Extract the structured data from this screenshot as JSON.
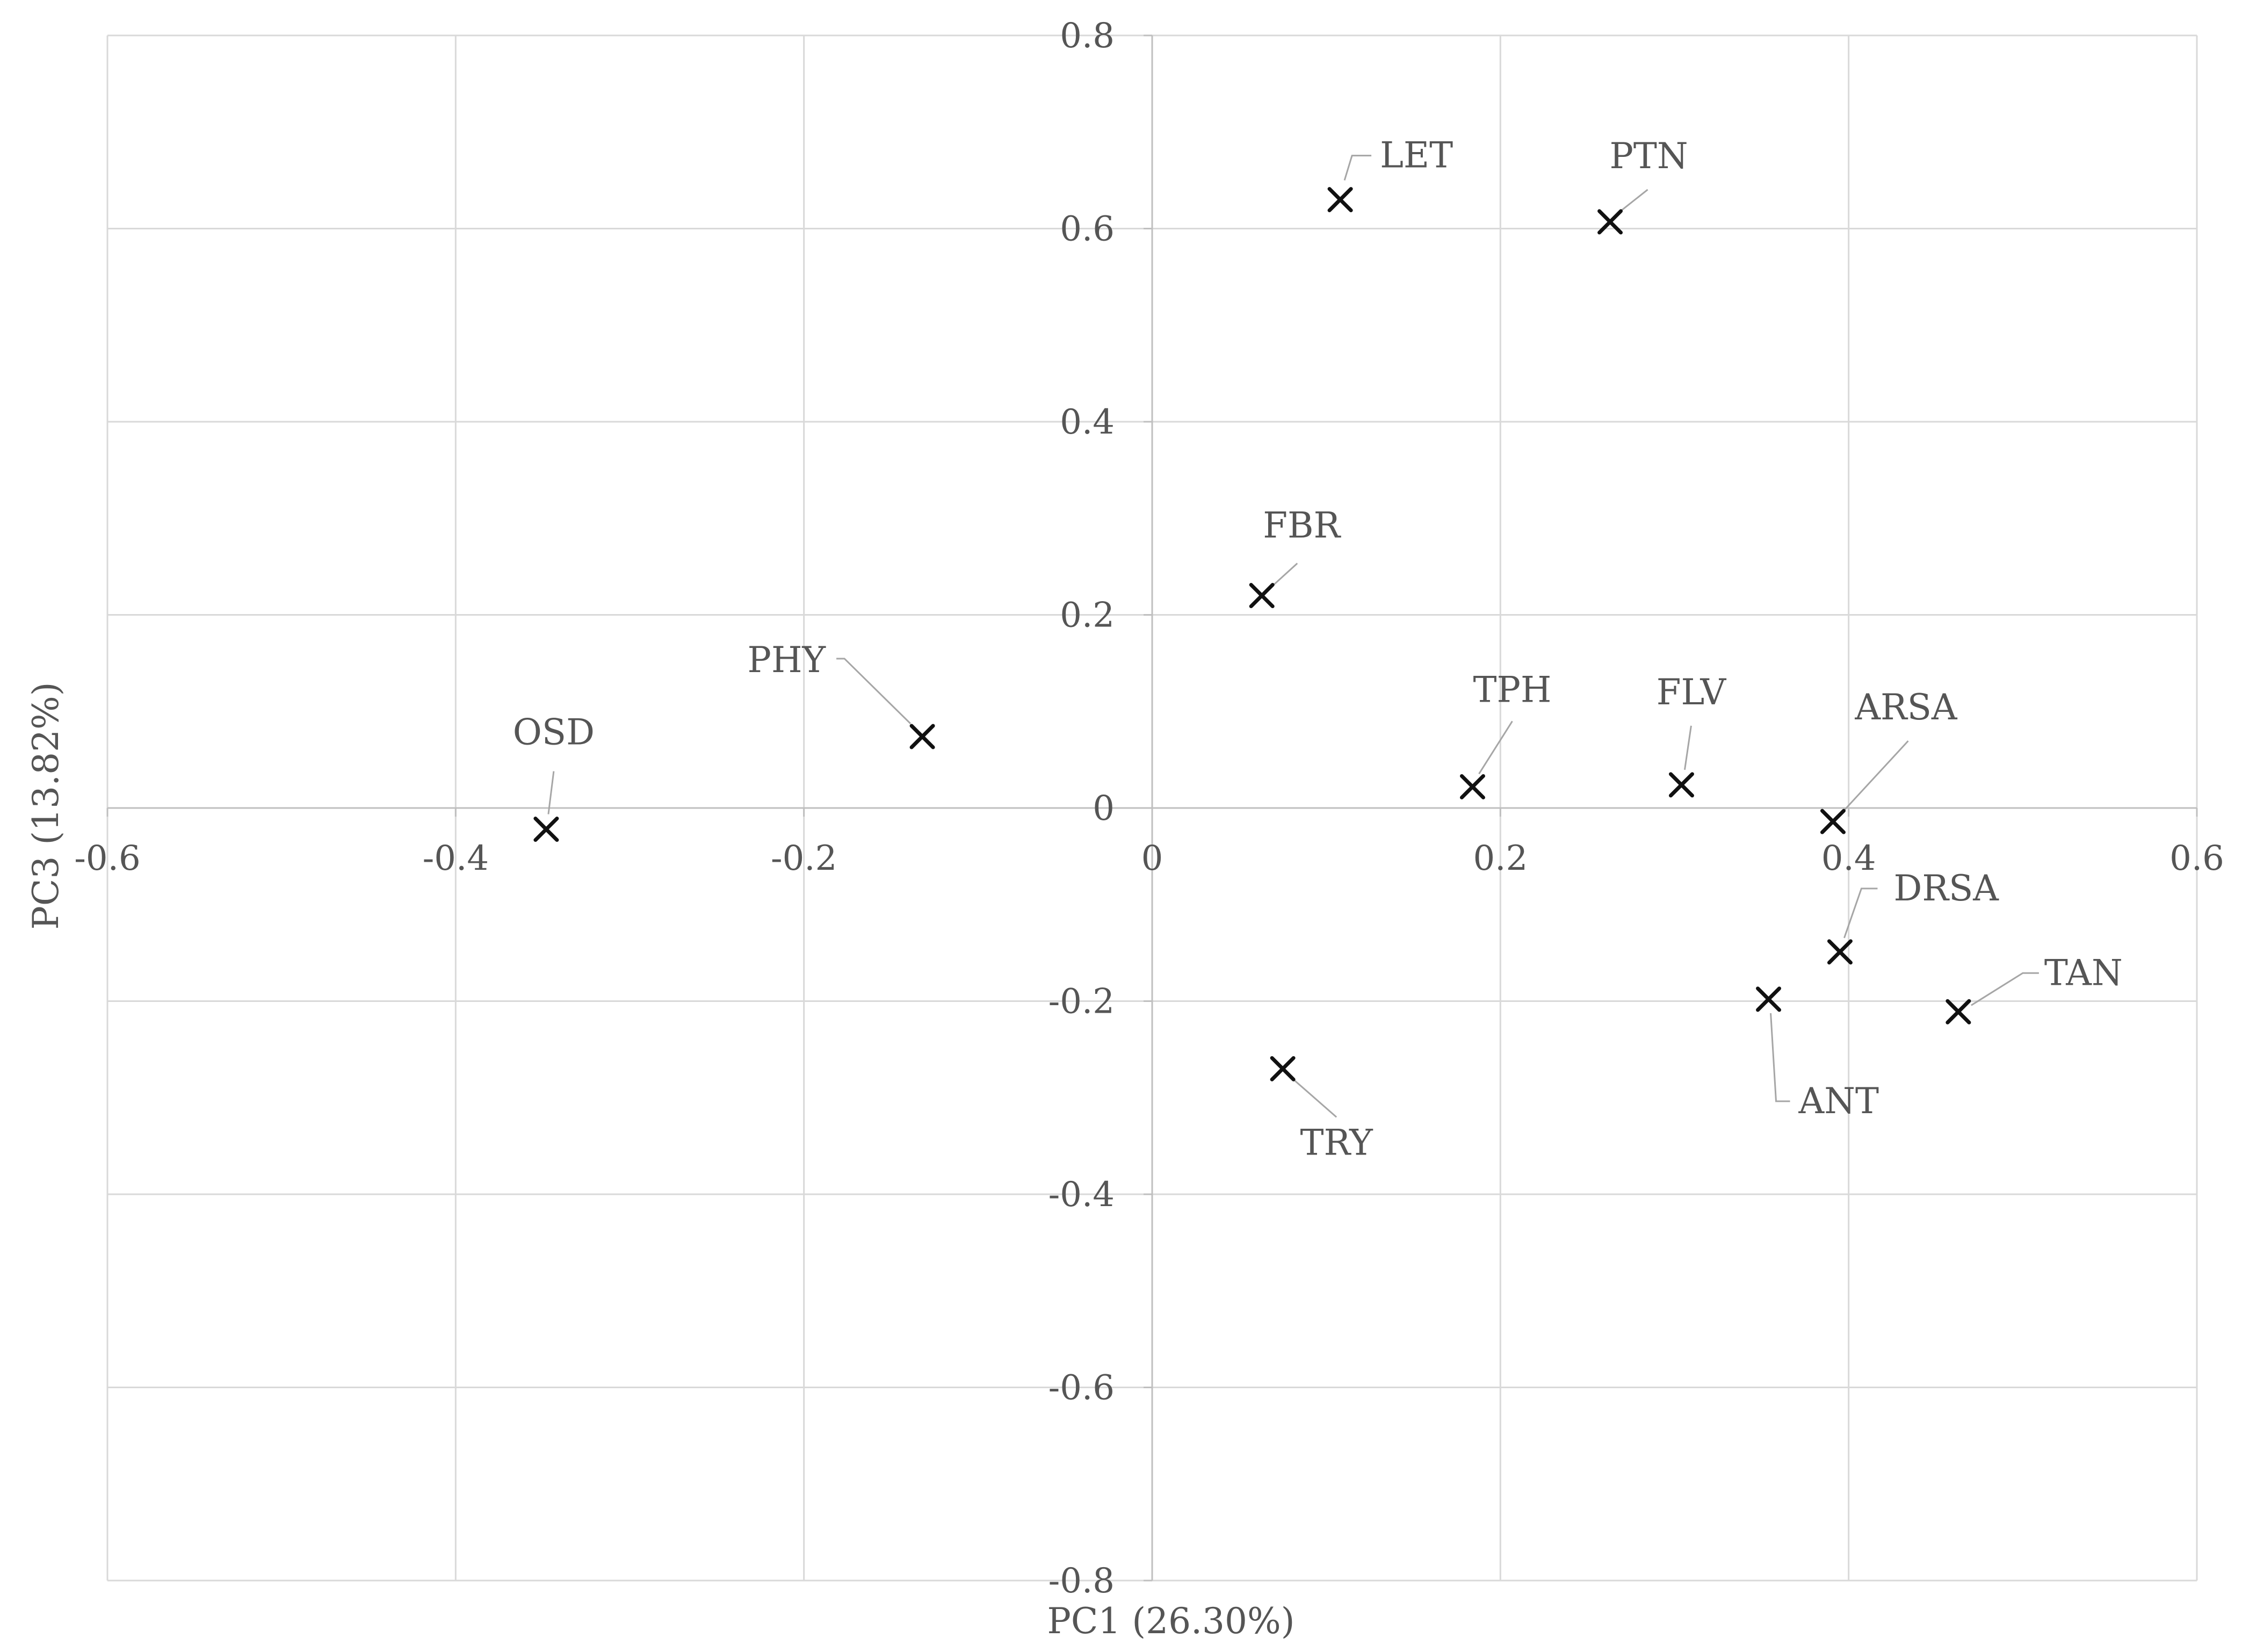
{
  "chart_data": {
    "type": "scatter",
    "title": "",
    "xlabel": "PC1 (26.30%)",
    "ylabel": "PC3 (13.82%)",
    "xlim": [
      -0.6,
      0.6
    ],
    "ylim": [
      -0.8,
      0.8
    ],
    "x_ticks": [
      -0.6,
      -0.4,
      -0.2,
      0,
      0.2,
      0.4,
      0.6
    ],
    "y_ticks": [
      -0.8,
      -0.6,
      -0.4,
      -0.2,
      0,
      0.2,
      0.4,
      0.6,
      0.8
    ],
    "x_tick_labels": [
      "-0.6",
      "-0.4",
      "-0.2",
      "0",
      "0.2",
      "0.4",
      "0.6"
    ],
    "y_tick_labels": [
      "-0.8",
      "-0.6",
      "-0.4",
      "-0.2",
      "0",
      "0.2",
      "0.4",
      "0.6",
      "0.8"
    ],
    "grid": true,
    "marker": "x",
    "points": [
      {
        "label": "LET",
        "x": 0.108,
        "y": 0.63,
        "label_side": "upper-right"
      },
      {
        "label": "PTN",
        "x": 0.263,
        "y": 0.607,
        "label_side": "upper-right"
      },
      {
        "label": "FBR",
        "x": 0.063,
        "y": 0.22,
        "label_side": "upper-right"
      },
      {
        "label": "PHY",
        "x": -0.132,
        "y": 0.074,
        "label_side": "upper-left"
      },
      {
        "label": "OSD",
        "x": -0.348,
        "y": -0.022,
        "label_side": "above"
      },
      {
        "label": "TPH",
        "x": 0.184,
        "y": 0.022,
        "label_side": "upper-right"
      },
      {
        "label": "FLV",
        "x": 0.304,
        "y": 0.024,
        "label_side": "above"
      },
      {
        "label": "ARSA",
        "x": 0.391,
        "y": -0.014,
        "label_side": "upper-right"
      },
      {
        "label": "DRSA",
        "x": 0.395,
        "y": -0.149,
        "label_side": "upper-right"
      },
      {
        "label": "TAN",
        "x": 0.463,
        "y": -0.211,
        "label_side": "right"
      },
      {
        "label": "ANT",
        "x": 0.354,
        "y": -0.198,
        "label_side": "below-right"
      },
      {
        "label": "TRY",
        "x": 0.075,
        "y": -0.27,
        "label_side": "below"
      }
    ]
  }
}
